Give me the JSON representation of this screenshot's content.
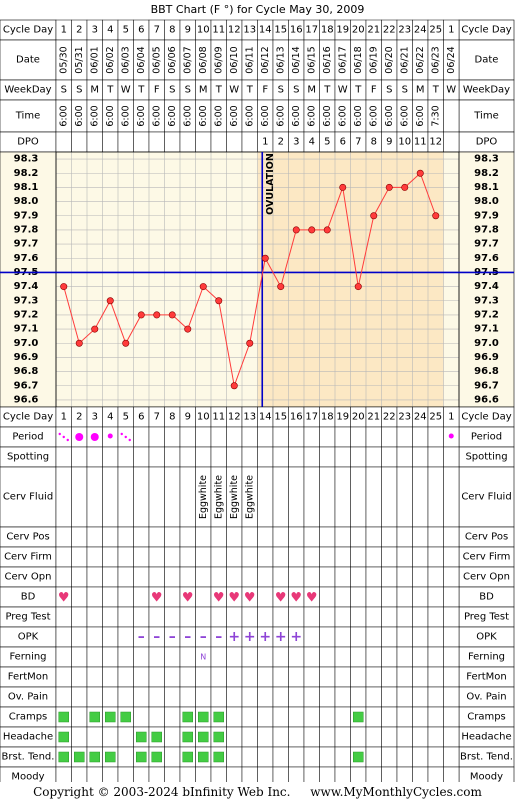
{
  "title": "BBT Chart (F °) for Cycle May 30, 2009",
  "footer": {
    "copyright": "Copyright © 2003-2024 bInfinity Web Inc.",
    "site": "www.MyMonthlyCycles.com"
  },
  "labels": {
    "cycle_day": "Cycle Day",
    "date": "Date",
    "weekday": "WeekDay",
    "time": "Time",
    "dpo": "DPO",
    "ovulation": "OVULATION"
  },
  "colors": {
    "pre_ov_bg": "#fdf9e6",
    "post_ov_bg": "#fce8c4",
    "grid": "#b8b8b8",
    "line": "#ff3b3b",
    "ovulation_line": "#0000c8",
    "cover_line": "#0000c8",
    "period": "#ff00ff",
    "heart": "#e83878",
    "opk": "#8e44d6",
    "green_box": "#44cc44",
    "label_bg": "#d8d8d8"
  },
  "chart_data": {
    "type": "line",
    "title": "BBT Chart (F °) for Cycle May 30, 2009",
    "x_cycle_days": [
      1,
      2,
      3,
      4,
      5,
      6,
      7,
      8,
      9,
      10,
      11,
      12,
      13,
      14,
      15,
      16,
      17,
      18,
      19,
      20,
      21,
      22,
      23,
      24,
      25,
      1
    ],
    "dates": [
      "05/30",
      "05/31",
      "06/01",
      "06/02",
      "06/03",
      "06/04",
      "06/05",
      "06/06",
      "06/07",
      "06/08",
      "06/09",
      "06/10",
      "06/11",
      "06/12",
      "06/13",
      "06/14",
      "06/15",
      "06/16",
      "06/17",
      "06/18",
      "06/19",
      "06/20",
      "06/21",
      "06/22",
      "06/23",
      "06/24"
    ],
    "weekdays": [
      "S",
      "S",
      "M",
      "T",
      "W",
      "T",
      "F",
      "S",
      "S",
      "M",
      "T",
      "W",
      "T",
      "F",
      "S",
      "S",
      "M",
      "T",
      "W",
      "T",
      "F",
      "S",
      "S",
      "M",
      "T",
      "W"
    ],
    "times": [
      "6:00",
      "6:00",
      "6:00",
      "6:00",
      "6:00",
      "6:00",
      "6:00",
      "6:00",
      "6:00",
      "6:00",
      "6:00",
      "6:00",
      "6:00",
      "6:00",
      "6:00",
      "6:00",
      "6:00",
      "6:00",
      "6:00",
      "6:00",
      "6:00",
      "6:00",
      "6:00",
      "6:00",
      "7:30",
      ""
    ],
    "dpo": [
      "",
      "",
      "",
      "",
      "",
      "",
      "",
      "",
      "",
      "",
      "",
      "",
      "",
      "1",
      "2",
      "3",
      "4",
      "5",
      "6",
      "7",
      "8",
      "9",
      "10",
      "11",
      "12",
      ""
    ],
    "temperatures": [
      97.4,
      97.0,
      97.1,
      97.3,
      97.0,
      97.2,
      97.2,
      97.2,
      97.1,
      97.4,
      97.3,
      96.7,
      97.0,
      97.6,
      97.4,
      97.8,
      97.8,
      97.8,
      98.1,
      97.4,
      97.9,
      98.1,
      98.1,
      98.2,
      97.9,
      null
    ],
    "ylim": [
      96.6,
      98.3
    ],
    "y_ticks": [
      "98.3",
      "98.2",
      "98.1",
      "98.0",
      "97.9",
      "97.8",
      "97.7",
      "97.6",
      "97.5",
      "97.4",
      "97.3",
      "97.2",
      "97.1",
      "97.0",
      "96.9",
      "96.8",
      "96.7",
      "96.6"
    ],
    "ovulation_day_index": 13,
    "coverline": 97.5,
    "grid": true
  },
  "rows": [
    {
      "key": "period",
      "label": "Period",
      "height": 20,
      "type": "period",
      "values": [
        "light",
        "heavy",
        "heavy",
        "medium",
        "light",
        "",
        "",
        "",
        "",
        "",
        "",
        "",
        "",
        "",
        "",
        "",
        "",
        "",
        "",
        "",
        "",
        "",
        "",
        "",
        "",
        "medium"
      ]
    },
    {
      "key": "spotting",
      "label": "Spotting",
      "height": 20,
      "type": "blank"
    },
    {
      "key": "cerv_fluid",
      "label": "Cerv Fluid",
      "height": 60,
      "type": "text",
      "values": [
        "",
        "",
        "",
        "",
        "",
        "",
        "",
        "",
        "",
        "Eggwhite",
        "Eggwhite",
        "Eggwhite",
        "Eggwhite",
        "",
        "",
        "",
        "",
        "",
        "",
        "",
        "",
        "",
        "",
        "",
        "",
        ""
      ]
    },
    {
      "key": "cerv_pos",
      "label": "Cerv Pos",
      "height": 20,
      "type": "blank"
    },
    {
      "key": "cerv_firm",
      "label": "Cerv Firm",
      "height": 20,
      "type": "blank"
    },
    {
      "key": "cerv_opn",
      "label": "Cerv Opn",
      "height": 20,
      "type": "blank"
    },
    {
      "key": "bd",
      "label": "BD",
      "height": 20,
      "type": "heart",
      "values": [
        1,
        0,
        0,
        0,
        0,
        0,
        1,
        0,
        1,
        0,
        1,
        1,
        1,
        0,
        1,
        1,
        1,
        0,
        0,
        0,
        0,
        0,
        0,
        0,
        0,
        0
      ]
    },
    {
      "key": "preg_test",
      "label": "Preg Test",
      "height": 20,
      "type": "blank"
    },
    {
      "key": "opk",
      "label": "OPK",
      "height": 20,
      "type": "opk",
      "values": [
        "",
        "",
        "",
        "",
        "",
        "-",
        "-",
        "-",
        "-",
        "-",
        "-",
        "+",
        "+",
        "+",
        "+",
        "+",
        "",
        "",
        "",
        "",
        "",
        "",
        "",
        "",
        "",
        ""
      ]
    },
    {
      "key": "ferning",
      "label": "Ferning",
      "height": 20,
      "type": "letter",
      "values": [
        "",
        "",
        "",
        "",
        "",
        "",
        "",
        "",
        "",
        "N",
        "",
        "",
        "",
        "",
        "",
        "",
        "",
        "",
        "",
        "",
        "",
        "",
        "",
        "",
        "",
        ""
      ]
    },
    {
      "key": "fertmon",
      "label": "FertMon",
      "height": 20,
      "type": "blank"
    },
    {
      "key": "ov_pain",
      "label": "Ov. Pain",
      "height": 20,
      "type": "blank"
    },
    {
      "key": "cramps",
      "label": "Cramps",
      "height": 20,
      "type": "box",
      "values": [
        1,
        0,
        1,
        1,
        1,
        0,
        0,
        0,
        1,
        1,
        1,
        0,
        0,
        0,
        0,
        0,
        0,
        0,
        0,
        1,
        0,
        0,
        0,
        0,
        0,
        0
      ]
    },
    {
      "key": "headache",
      "label": "Headache",
      "height": 20,
      "type": "box",
      "values": [
        1,
        0,
        0,
        0,
        0,
        1,
        1,
        0,
        1,
        1,
        1,
        0,
        0,
        0,
        0,
        0,
        0,
        0,
        0,
        0,
        0,
        0,
        0,
        0,
        0,
        0
      ]
    },
    {
      "key": "brst_tend",
      "label": "Brst. Tend.",
      "height": 20,
      "type": "box",
      "values": [
        1,
        1,
        1,
        1,
        0,
        1,
        1,
        0,
        1,
        1,
        1,
        0,
        0,
        0,
        0,
        0,
        0,
        0,
        0,
        1,
        0,
        0,
        0,
        0,
        0,
        0
      ]
    },
    {
      "key": "moody",
      "label": "Moody",
      "height": 20,
      "type": "blank"
    }
  ]
}
